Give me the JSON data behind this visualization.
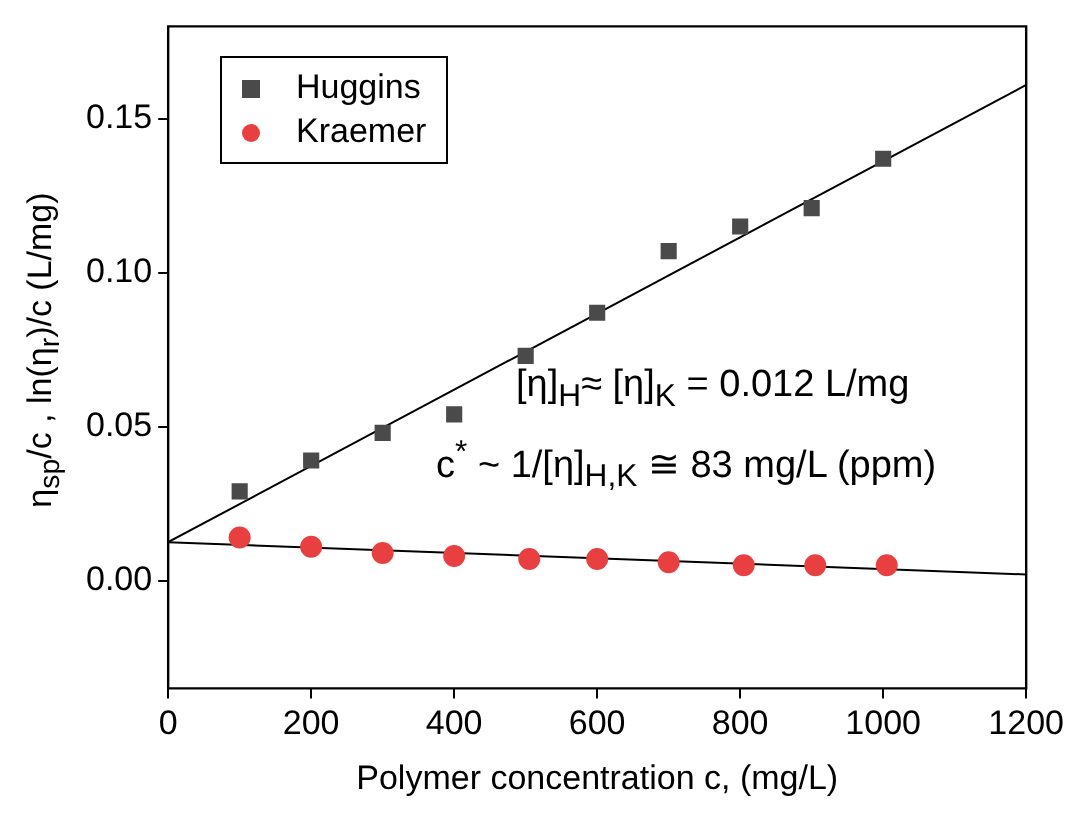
{
  "chart_data": {
    "type": "scatter",
    "xlabel": "Polymer concentration c, (mg/L)",
    "ylabel": "η$_{sp}$/c , ln(η$_{r}$)/c  (L/mg)",
    "series": [
      {
        "name": "Huggins",
        "marker": "square",
        "color": "#4a4a4a",
        "x": [
          100,
          200,
          300,
          400,
          500,
          600,
          700,
          800,
          900,
          1000
        ],
        "values": [
          0.029,
          0.039,
          0.048,
          0.054,
          0.073,
          0.087,
          0.107,
          0.115,
          0.121,
          0.137
        ]
      },
      {
        "name": "Kraemer",
        "marker": "circle",
        "color": "#e84040",
        "x": [
          100,
          200,
          300,
          400,
          505,
          600,
          700,
          805,
          905,
          1005
        ],
        "values": [
          0.014,
          0.011,
          0.009,
          0.008,
          0.007,
          0.007,
          0.006,
          0.005,
          0.005,
          0.005
        ]
      },
      {
        "type": "line",
        "color": "#000000",
        "x": [
          0,
          1200
        ],
        "values": [
          0.0125,
          0.161
        ]
      },
      {
        "type": "line",
        "color": "#000000",
        "x": [
          0,
          1200
        ],
        "values": [
          0.0125,
          0.002
        ]
      }
    ],
    "xlim": [
      0,
      1200
    ],
    "xticks": [
      0,
      200,
      400,
      600,
      800,
      1000,
      1200
    ],
    "ylim": [
      -0.035,
      0.18
    ],
    "yticks": [
      {
        "value": 0,
        "label": "0.00"
      },
      {
        "value": 0.05,
        "label": "0.05"
      },
      {
        "value": 0.1,
        "label": "0.10"
      },
      {
        "value": 0.15,
        "label": "0.15"
      }
    ],
    "legend": "top left",
    "annotations": [
      "[η]$_{H}$≈ [η]$_{K}$ = 0.012 L/mg",
      "c$^{*}$ ~ 1/[η]$_{H,K}$ ≅ 83 mg/L (ppm)"
    ]
  }
}
